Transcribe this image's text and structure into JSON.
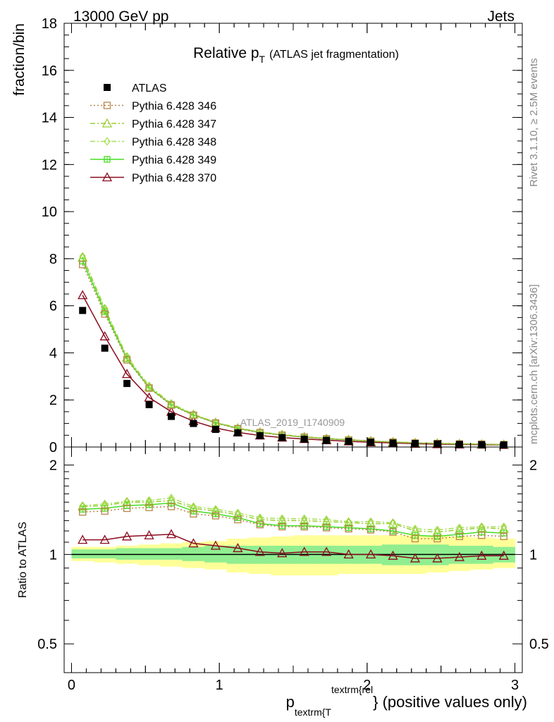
{
  "header": {
    "energy": "13000 GeV pp",
    "category": "Jets"
  },
  "side_labels": {
    "rivet": "Rivet 3.1.10, ≥ 2.5M events",
    "mcplots": "mcplots.cern.ch [arXiv:1306.3436]"
  },
  "chart_data": [
    {
      "type": "line",
      "title": "Relative p",
      "title_sub": "T",
      "title_note": "(ATLAS jet fragmentation)",
      "watermark": "ATLAS_2019_I1740909",
      "ylabel": "fraction/bin",
      "xlim": [
        -0.05,
        3.05
      ],
      "ylim": [
        0,
        18
      ],
      "yticks": [
        0,
        2,
        4,
        6,
        8,
        10,
        12,
        14,
        16,
        18
      ],
      "x": [
        0.075,
        0.225,
        0.375,
        0.525,
        0.675,
        0.825,
        0.975,
        1.125,
        1.275,
        1.425,
        1.575,
        1.725,
        1.875,
        2.025,
        2.175,
        2.325,
        2.475,
        2.625,
        2.775,
        2.925
      ],
      "legend_position": "top-left",
      "series": [
        {
          "name": "ATLAS",
          "color": "#000000",
          "marker": "square-filled",
          "line": "none",
          "values": [
            5.8,
            4.2,
            2.7,
            1.8,
            1.3,
            1.0,
            0.75,
            0.6,
            0.48,
            0.4,
            0.33,
            0.28,
            0.24,
            0.2,
            0.17,
            0.15,
            0.13,
            0.11,
            0.1,
            0.09
          ]
        },
        {
          "name": "Pythia 6.428 346",
          "color": "#b8864b",
          "marker": "square-open",
          "line": "dotted",
          "values": [
            7.75,
            5.65,
            3.7,
            2.5,
            1.78,
            1.35,
            1.02,
            0.78,
            0.61,
            0.5,
            0.42,
            0.35,
            0.3,
            0.25,
            0.21,
            0.17,
            0.15,
            0.13,
            0.12,
            0.1
          ]
        },
        {
          "name": "Pythia 6.428 347",
          "color": "#9acd32",
          "marker": "triangle-open",
          "line": "dash-dot",
          "values": [
            8.05,
            5.85,
            3.8,
            2.55,
            1.82,
            1.38,
            1.04,
            0.8,
            0.63,
            0.52,
            0.43,
            0.36,
            0.31,
            0.26,
            0.22,
            0.18,
            0.16,
            0.14,
            0.12,
            0.11
          ]
        },
        {
          "name": "Pythia 6.428 348",
          "color": "#a6e05a",
          "marker": "diamond-open",
          "line": "dash-dot",
          "values": [
            8.1,
            5.9,
            3.85,
            2.6,
            1.85,
            1.4,
            1.05,
            0.82,
            0.64,
            0.53,
            0.44,
            0.37,
            0.31,
            0.26,
            0.22,
            0.18,
            0.16,
            0.14,
            0.12,
            0.11
          ]
        },
        {
          "name": "Pythia 6.428 349",
          "color": "#44dd22",
          "marker": "square-cross",
          "line": "solid",
          "values": [
            7.9,
            5.75,
            3.75,
            2.52,
            1.8,
            1.36,
            1.03,
            0.79,
            0.62,
            0.51,
            0.42,
            0.35,
            0.3,
            0.25,
            0.21,
            0.17,
            0.15,
            0.13,
            0.12,
            0.1
          ]
        },
        {
          "name": "Pythia 6.428 370",
          "color": "#8b0a1e",
          "marker": "triangle-open",
          "line": "solid",
          "values": [
            6.45,
            4.7,
            3.1,
            2.1,
            1.5,
            1.1,
            0.81,
            0.62,
            0.49,
            0.4,
            0.34,
            0.29,
            0.24,
            0.2,
            0.17,
            0.14,
            0.12,
            0.11,
            0.1,
            0.09
          ]
        }
      ]
    },
    {
      "type": "line",
      "ylabel": "Ratio to ATLAS",
      "xlabel": "p",
      "xlabel_sub": "textrm{T",
      "xlabel_sup": "textrm{rel",
      "xlabel_suffix": "} (positive values only)",
      "xlim": [
        -0.05,
        3.05
      ],
      "ylim": [
        0.4,
        2.3
      ],
      "log_y": true,
      "yticks": [
        0.5,
        1,
        2
      ],
      "xticks": [
        0,
        1,
        2,
        3
      ],
      "x": [
        0.075,
        0.225,
        0.375,
        0.525,
        0.675,
        0.825,
        0.975,
        1.125,
        1.275,
        1.425,
        1.575,
        1.725,
        1.875,
        2.025,
        2.175,
        2.325,
        2.475,
        2.625,
        2.775,
        2.925
      ],
      "band_inner": {
        "color": "#90ee90",
        "lower": [
          0.97,
          0.97,
          0.96,
          0.96,
          0.96,
          0.95,
          0.94,
          0.93,
          0.93,
          0.93,
          0.93,
          0.93,
          0.93,
          0.93,
          0.92,
          0.92,
          0.92,
          0.93,
          0.93,
          0.94
        ],
        "upper": [
          1.04,
          1.04,
          1.05,
          1.05,
          1.05,
          1.06,
          1.07,
          1.07,
          1.07,
          1.07,
          1.07,
          1.07,
          1.07,
          1.07,
          1.08,
          1.08,
          1.08,
          1.07,
          1.07,
          1.06
        ]
      },
      "band_outer": {
        "color": "#ffff99",
        "lower": [
          0.95,
          0.94,
          0.93,
          0.92,
          0.91,
          0.9,
          0.89,
          0.87,
          0.86,
          0.85,
          0.85,
          0.85,
          0.86,
          0.86,
          0.86,
          0.86,
          0.87,
          0.88,
          0.89,
          0.9
        ],
        "upper": [
          1.06,
          1.06,
          1.07,
          1.08,
          1.09,
          1.1,
          1.11,
          1.13,
          1.14,
          1.15,
          1.16,
          1.16,
          1.16,
          1.16,
          1.16,
          1.16,
          1.16,
          1.15,
          1.14,
          1.13
        ]
      },
      "series": [
        {
          "name": "Pythia 6.428 346",
          "color": "#b8864b",
          "marker": "square-open",
          "line": "dotted",
          "values": [
            1.39,
            1.4,
            1.43,
            1.44,
            1.45,
            1.37,
            1.35,
            1.31,
            1.26,
            1.24,
            1.24,
            1.23,
            1.22,
            1.21,
            1.19,
            1.13,
            1.13,
            1.15,
            1.16,
            1.15
          ]
        },
        {
          "name": "Pythia 6.428 347",
          "color": "#9acd32",
          "marker": "triangle-open",
          "line": "dash-dot",
          "values": [
            1.45,
            1.46,
            1.5,
            1.5,
            1.52,
            1.43,
            1.4,
            1.36,
            1.31,
            1.3,
            1.3,
            1.29,
            1.28,
            1.27,
            1.27,
            1.2,
            1.19,
            1.21,
            1.23,
            1.22
          ]
        },
        {
          "name": "Pythia 6.428 348",
          "color": "#a6e05a",
          "marker": "diamond-open",
          "line": "dash-dot",
          "values": [
            1.46,
            1.48,
            1.51,
            1.52,
            1.55,
            1.45,
            1.42,
            1.38,
            1.33,
            1.32,
            1.32,
            1.31,
            1.29,
            1.29,
            1.28,
            1.22,
            1.21,
            1.23,
            1.24,
            1.24
          ]
        },
        {
          "name": "Pythia 6.428 349",
          "color": "#44dd22",
          "marker": "square-cross",
          "line": "solid",
          "values": [
            1.42,
            1.43,
            1.46,
            1.47,
            1.49,
            1.4,
            1.37,
            1.33,
            1.27,
            1.25,
            1.25,
            1.24,
            1.23,
            1.22,
            1.2,
            1.16,
            1.15,
            1.17,
            1.19,
            1.18
          ]
        },
        {
          "name": "Pythia 6.428 370",
          "color": "#8b0a1e",
          "marker": "triangle-open",
          "line": "solid",
          "values": [
            1.12,
            1.12,
            1.15,
            1.16,
            1.17,
            1.09,
            1.07,
            1.05,
            1.02,
            1.01,
            1.02,
            1.02,
            1.0,
            1.0,
            0.99,
            0.97,
            0.97,
            0.98,
            0.99,
            0.99
          ]
        }
      ]
    }
  ]
}
